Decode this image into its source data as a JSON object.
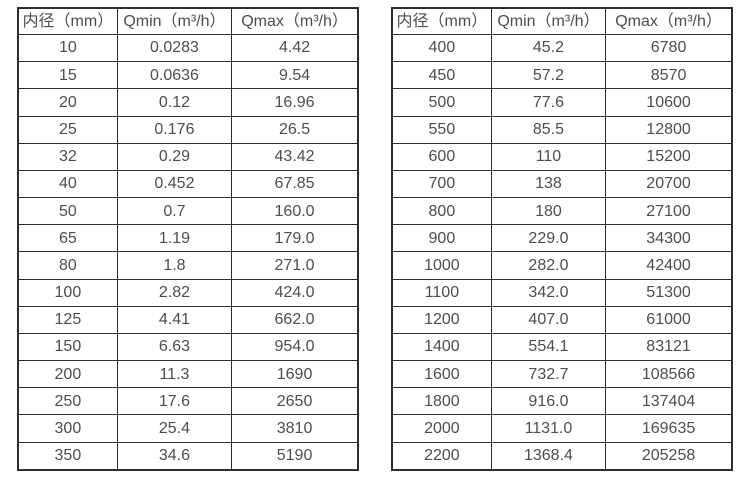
{
  "page": {
    "background_color": "#ffffff",
    "border_color": "#2e2e2e",
    "text_color": "#4d4d4d"
  },
  "chart_data": [
    {
      "type": "table",
      "title": "",
      "headers": [
        "内径（mm）",
        "Qmin（m³/h）",
        "Qmax（m³/h）"
      ],
      "rows": [
        [
          "10",
          "0.0283",
          "4.42"
        ],
        [
          "15",
          "0.0636",
          "9.54"
        ],
        [
          "20",
          "0.12",
          "16.96"
        ],
        [
          "25",
          "0.176",
          "26.5"
        ],
        [
          "32",
          "0.29",
          "43.42"
        ],
        [
          "40",
          "0.452",
          "67.85"
        ],
        [
          "50",
          "0.7",
          "160.0"
        ],
        [
          "65",
          "1.19",
          "179.0"
        ],
        [
          "80",
          "1.8",
          "271.0"
        ],
        [
          "100",
          "2.82",
          "424.0"
        ],
        [
          "125",
          "4.41",
          "662.0"
        ],
        [
          "150",
          "6.63",
          "954.0"
        ],
        [
          "200",
          "11.3",
          "1690"
        ],
        [
          "250",
          "17.6",
          "2650"
        ],
        [
          "300",
          "25.4",
          "3810"
        ],
        [
          "350",
          "34.6",
          "5190"
        ]
      ]
    },
    {
      "type": "table",
      "title": "",
      "headers": [
        "内径（mm）",
        "Qmin（m³/h）",
        "Qmax（m³/h）"
      ],
      "rows": [
        [
          "400",
          "45.2",
          "6780"
        ],
        [
          "450",
          "57.2",
          "8570"
        ],
        [
          "500",
          "77.6",
          "10600"
        ],
        [
          "550",
          "85.5",
          "12800"
        ],
        [
          "600",
          "110",
          "15200"
        ],
        [
          "700",
          "138",
          "20700"
        ],
        [
          "800",
          "180",
          "27100"
        ],
        [
          "900",
          "229.0",
          "34300"
        ],
        [
          "1000",
          "282.0",
          "42400"
        ],
        [
          "1100",
          "342.0",
          "51300"
        ],
        [
          "1200",
          "407.0",
          "61000"
        ],
        [
          "1400",
          "554.1",
          "83121"
        ],
        [
          "1600",
          "732.7",
          "108566"
        ],
        [
          "1800",
          "916.0",
          "137404"
        ],
        [
          "2000",
          "1131.0",
          "169635"
        ],
        [
          "2200",
          "1368.4",
          "205258"
        ]
      ]
    }
  ]
}
